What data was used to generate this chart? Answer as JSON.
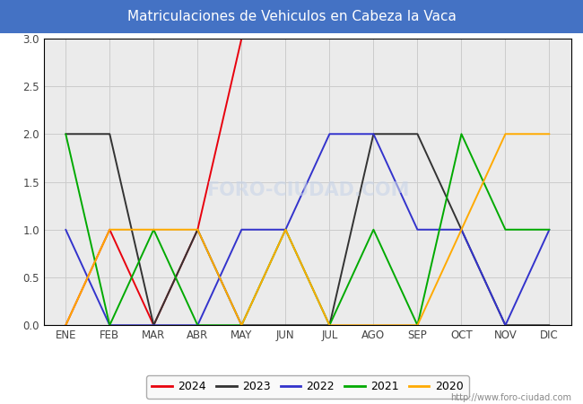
{
  "title": "Matriculaciones de Vehiculos en Cabeza la Vaca",
  "title_bg_color": "#4472c4",
  "title_text_color": "#ffffff",
  "months": [
    "ENE",
    "FEB",
    "MAR",
    "ABR",
    "MAY",
    "JUN",
    "JUL",
    "AGO",
    "SEP",
    "OCT",
    "NOV",
    "DIC"
  ],
  "ylim": [
    0.0,
    3.0
  ],
  "yticks": [
    0.0,
    0.5,
    1.0,
    1.5,
    2.0,
    2.5,
    3.0
  ],
  "series": {
    "2024": {
      "color": "#e8000d",
      "data": [
        0,
        1,
        0,
        1,
        3,
        null,
        null,
        null,
        null,
        null,
        null,
        null
      ]
    },
    "2023": {
      "color": "#333333",
      "data": [
        2,
        2,
        0,
        1,
        0,
        0,
        0,
        2,
        2,
        1,
        0,
        0
      ]
    },
    "2022": {
      "color": "#3333cc",
      "data": [
        1,
        0,
        0,
        0,
        1,
        1,
        2,
        2,
        1,
        1,
        0,
        1
      ]
    },
    "2021": {
      "color": "#00aa00",
      "data": [
        2,
        0,
        1,
        0,
        0,
        1,
        0,
        1,
        0,
        2,
        1,
        1
      ]
    },
    "2020": {
      "color": "#ffaa00",
      "data": [
        0,
        1,
        1,
        1,
        0,
        1,
        0,
        0,
        0,
        1,
        2,
        2
      ]
    }
  },
  "grid_color": "#cccccc",
  "plot_bg_color": "#ebebeb",
  "outer_bg_color": "#ffffff",
  "fig_bg_color": "#ffffff",
  "watermark_text": "http://www.foro-ciudad.com",
  "watermark_plot": "FORO-CIUDAD.COM",
  "legend_order": [
    "2024",
    "2023",
    "2022",
    "2021",
    "2020"
  ],
  "title_fontsize": 11,
  "tick_fontsize": 8.5,
  "legend_fontsize": 9
}
